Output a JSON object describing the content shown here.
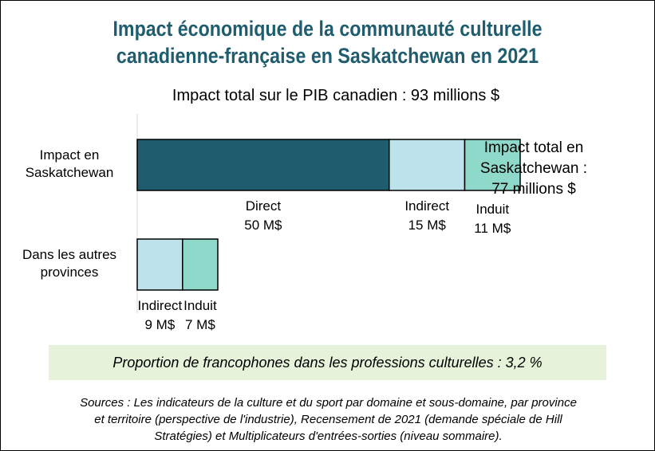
{
  "title": {
    "line1": "Impact économique de la communauté culturelle",
    "line2": "canadienne-française en Saskatchewan en 2021"
  },
  "subtitle": "Impact total sur le PIB canadien : 93 millions $",
  "total_saskatchewan": {
    "line1": "Impact total en",
    "line2": "Saskatchewan :",
    "line3": "77 millions $"
  },
  "proportion_note": "Proportion de francophones dans les professions culturelles : 3,2 %",
  "sources": {
    "line1": "Sources : Les indicateurs de la culture et du sport par domaine et sous-domaine, par province",
    "line2": "et territoire (perspective de l'industrie), Recensement de 2021 (demande spéciale de Hill",
    "line3": "Stratégies) et Multiplicateurs d'entrées-sorties (niveau sommaire)."
  },
  "colors": {
    "title": "#1e5c6e",
    "direct": "#1e5c6e",
    "indirect": "#bde2ec",
    "induit": "#8ed9c9",
    "note_bg": "#e6f2d9"
  },
  "chart_data": {
    "type": "bar",
    "orientation": "horizontal",
    "stacked": true,
    "units": "M$",
    "categories": [
      {
        "lines": [
          "Impact en",
          "Saskatchewan"
        ]
      },
      {
        "lines": [
          "Dans les autres",
          "provinces"
        ]
      }
    ],
    "series": [
      {
        "name": "Direct",
        "values": [
          50,
          0
        ],
        "labels": [
          "50 M$",
          ""
        ]
      },
      {
        "name": "Indirect",
        "values": [
          15,
          9
        ],
        "labels": [
          "15 M$",
          "9 M$"
        ]
      },
      {
        "name": "Induit",
        "values": [
          11,
          7
        ],
        "labels": [
          "11 M$",
          "7 M$"
        ]
      }
    ],
    "xlim": [
      0,
      76
    ],
    "grid": false,
    "legend": "none"
  }
}
